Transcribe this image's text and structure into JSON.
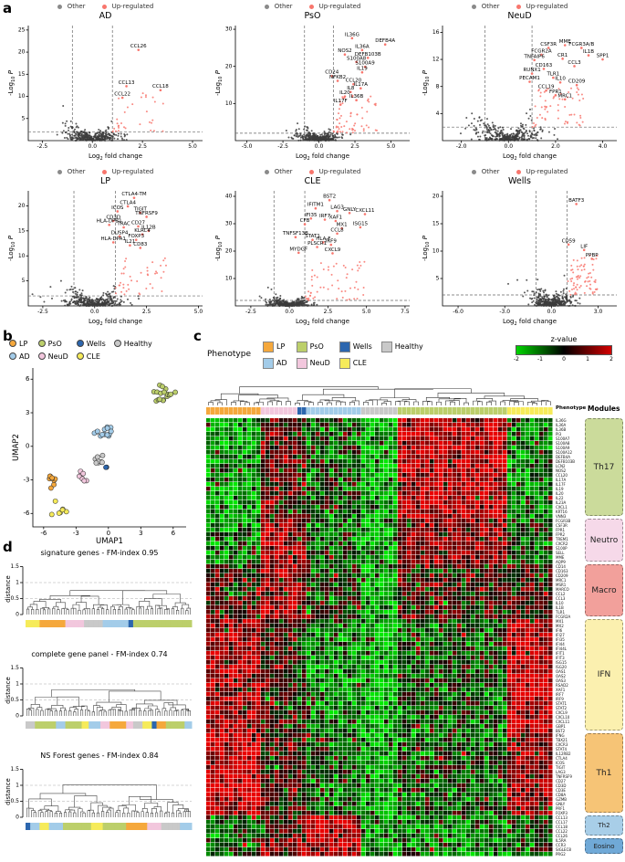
{
  "figure": {
    "panel_labels": {
      "a": "a",
      "b": "b",
      "c": "c",
      "d": "d"
    }
  },
  "colors": {
    "up": "#F8766D",
    "other_point": "#3c3c3c",
    "other_legend": "#8a8a8a",
    "heat_neg": "#00d400",
    "heat_pos": "#d40000",
    "phenotypes": {
      "LP": "#F5A83C",
      "PsO": "#BCCF6B",
      "Wells": "#2C66AE",
      "Healthy": "#C9C9C9",
      "AD": "#A3CCE9",
      "NeuD": "#F2C7DD",
      "CLE": "#F6EB5A"
    },
    "modules": {
      "Th17": "#CBDB9B",
      "Neutro": "#F6D9E9",
      "Macro": "#F2A09B",
      "IFN": "#FBF0AF",
      "Th1": "#F6C476",
      "Th2": "#A8CEE8",
      "Eosino": "#70A9D7"
    }
  },
  "volcano_legend": {
    "other": "Other",
    "up": "Up-regulated"
  },
  "axis_labels": {
    "volcano_x": {
      "pre": "Log",
      "sub": "2",
      "post": " fold change"
    },
    "volcano_y": {
      "pre": "-Log",
      "sub": "10",
      "post": " P"
    },
    "umap_x": "UMAP1",
    "umap_y": "UMAP2",
    "distance": "distance"
  },
  "phenotype_legend_order": [
    "LP",
    "AD",
    "PsO",
    "NeuD",
    "Wells",
    "CLE",
    "Healthy"
  ],
  "chart_data": {
    "volcanoes": [
      {
        "type": "scatter",
        "title": "AD",
        "xlim": [
          -3.2,
          5.5
        ],
        "xticks": [
          -2.5,
          0,
          2.5,
          5
        ],
        "ylim": [
          0,
          26
        ],
        "yticks": [
          5,
          10,
          15,
          20,
          25
        ],
        "threshold_x": [
          -1,
          1
        ],
        "threshold_y": 2,
        "n_background": 380,
        "n_extra_red": 20,
        "seed": 1,
        "genes": [
          [
            "CCL26",
            2.3,
            20.5
          ],
          [
            "CCL13",
            1.7,
            12.3
          ],
          [
            "CCL18",
            3.4,
            11.4
          ],
          [
            "CCL22",
            1.5,
            9.7
          ]
        ]
      },
      {
        "type": "scatter",
        "title": "PsO",
        "xlim": [
          -5.8,
          6.3
        ],
        "xticks": [
          -5,
          -2.5,
          0,
          2.5,
          5
        ],
        "ylim": [
          0,
          31
        ],
        "yticks": [
          10,
          20,
          30
        ],
        "threshold_x": [
          -1,
          1
        ],
        "threshold_y": 2,
        "n_background": 420,
        "n_extra_red": 45,
        "seed": 2,
        "genes": [
          [
            "IL36G",
            2.3,
            27.6
          ],
          [
            "DEFB4A",
            4.6,
            25.9
          ],
          [
            "IL36A",
            3.0,
            24.4
          ],
          [
            "NOS2",
            1.8,
            23.2
          ],
          [
            "DEFB103B",
            3.4,
            22.3
          ],
          [
            "S100A8",
            2.6,
            21.2
          ],
          [
            "S100A9",
            3.2,
            19.9
          ],
          [
            "IL19",
            3.0,
            18.4
          ],
          [
            "CD24",
            0.9,
            17.4
          ],
          [
            "NFKB2",
            1.3,
            16.1
          ],
          [
            "CCL20",
            2.4,
            15.2
          ],
          [
            "IL17A",
            2.9,
            14.1
          ],
          [
            "IL8",
            2.2,
            13.1
          ],
          [
            "IL20",
            1.8,
            11.9
          ],
          [
            "IL36B",
            2.6,
            10.9
          ],
          [
            "IL17F",
            1.5,
            9.7
          ]
        ]
      },
      {
        "type": "scatter",
        "title": "NeuD",
        "xlim": [
          -2.8,
          4.6
        ],
        "xticks": [
          -2,
          0,
          2,
          4
        ],
        "ylim": [
          0,
          17
        ],
        "yticks": [
          4,
          8,
          12,
          16
        ],
        "threshold_x": [
          -1,
          1
        ],
        "threshold_y": 2,
        "n_background": 380,
        "n_extra_red": 50,
        "seed": 3,
        "genes": [
          [
            "CSF3R",
            1.7,
            13.7
          ],
          [
            "MME",
            2.4,
            14.1
          ],
          [
            "FCGR3A/B",
            3.1,
            13.7
          ],
          [
            "FCGR2A",
            1.4,
            12.7
          ],
          [
            "IL1B",
            3.4,
            12.6
          ],
          [
            "CR1",
            2.3,
            12.1
          ],
          [
            "SPP1",
            4.0,
            12.0
          ],
          [
            "TNFAIP6",
            1.1,
            11.9
          ],
          [
            "CCL3",
            2.8,
            11.0
          ],
          [
            "CD163",
            1.5,
            10.6
          ],
          [
            "RUNX1",
            1.0,
            9.9
          ],
          [
            "TLR1",
            1.9,
            9.3
          ],
          [
            "PECAM1",
            0.9,
            8.7
          ],
          [
            "IL10",
            2.2,
            8.6
          ],
          [
            "CD209",
            2.9,
            8.2
          ],
          [
            "CCL19",
            1.6,
            7.4
          ],
          [
            "FPR1",
            2.0,
            6.7
          ],
          [
            "MRC1",
            2.4,
            6.1
          ]
        ]
      },
      {
        "type": "scatter",
        "title": "LP",
        "xlim": [
          -3.2,
          5.2
        ],
        "xticks": [
          -2.5,
          0,
          2.5,
          5
        ],
        "ylim": [
          0,
          23
        ],
        "yticks": [
          5,
          10,
          15,
          20
        ],
        "threshold_x": [
          -1,
          1
        ],
        "threshold_y": 2,
        "n_background": 400,
        "n_extra_red": 30,
        "seed": 4,
        "genes": [
          [
            "CTLA4-TM",
            1.9,
            21.6
          ],
          [
            "CTLA4",
            1.6,
            19.9
          ],
          [
            "ICOS",
            1.1,
            18.9
          ],
          [
            "TIGIT",
            2.2,
            18.6
          ],
          [
            "TNFRSF9",
            2.5,
            17.8
          ],
          [
            "CD3D",
            0.9,
            17.0
          ],
          [
            "HLA-DPB1",
            0.7,
            16.2
          ],
          [
            "TRAC",
            1.4,
            15.7
          ],
          [
            "CD27",
            2.1,
            15.9
          ],
          [
            "IL12B",
            2.6,
            15.0
          ],
          [
            "KLRC4",
            2.3,
            14.3
          ],
          [
            "DUSP4",
            1.2,
            13.9
          ],
          [
            "FOXP3",
            2.0,
            13.2
          ],
          [
            "HLA-DPA1",
            0.9,
            12.7
          ],
          [
            "IL21",
            1.7,
            12.1
          ],
          [
            "CD83",
            2.2,
            11.6
          ]
        ]
      },
      {
        "type": "scatter",
        "title": "CLE",
        "xlim": [
          -3.5,
          7.8
        ],
        "xticks": [
          -2.5,
          0,
          2.5,
          5,
          7.5
        ],
        "ylim": [
          0,
          42
        ],
        "yticks": [
          10,
          20,
          30,
          40
        ],
        "threshold_x": [
          -1,
          1
        ],
        "threshold_y": 2,
        "n_background": 400,
        "n_extra_red": 45,
        "seed": 5,
        "genes": [
          [
            "BST2",
            2.6,
            38.6
          ],
          [
            "IFITM1",
            1.7,
            35.6
          ],
          [
            "LAG3",
            3.1,
            34.6
          ],
          [
            "GNLY",
            3.9,
            33.9
          ],
          [
            "CXCL11",
            4.9,
            33.5
          ],
          [
            "IFI35",
            1.4,
            31.9
          ],
          [
            "IRF7",
            2.3,
            31.5
          ],
          [
            "XAF1",
            3.0,
            31.0
          ],
          [
            "CFB",
            1.0,
            29.8
          ],
          [
            "ISG15",
            4.6,
            28.7
          ],
          [
            "MX1",
            3.4,
            28.3
          ],
          [
            "CCL8",
            3.1,
            26.4
          ],
          [
            "TNFSF13B",
            0.4,
            25.1
          ],
          [
            "STAT1",
            1.5,
            24.1
          ],
          [
            "HLA-F",
            2.2,
            23.2
          ],
          [
            "IRF9",
            2.7,
            22.3
          ],
          [
            "PLSCR1",
            1.8,
            21.5
          ],
          [
            "MYDGF",
            0.6,
            19.4
          ],
          [
            "CXCL9",
            2.8,
            19.2
          ]
        ]
      },
      {
        "type": "scatter",
        "title": "Wells",
        "xlim": [
          -7.0,
          4.2
        ],
        "xticks": [
          -6,
          -3,
          0,
          3
        ],
        "ylim": [
          0,
          21
        ],
        "yticks": [
          5,
          10,
          15,
          20
        ],
        "threshold_x": [
          -1,
          1
        ],
        "threshold_y": 2,
        "n_background": 380,
        "n_extra_red": 60,
        "seed": 6,
        "genes": [
          [
            "BATF3",
            1.6,
            18.6
          ],
          [
            "CD59",
            1.1,
            11.2
          ],
          [
            "LIF",
            2.1,
            10.2
          ],
          [
            "PPBP",
            2.6,
            8.6
          ]
        ]
      }
    ],
    "umap": {
      "type": "scatter",
      "xlabel": "UMAP1",
      "ylabel": "UMAP2",
      "xlim": [
        -7,
        7.2
      ],
      "ylim": [
        -7.2,
        7
      ],
      "xticks": [
        -6,
        -3,
        0,
        3,
        6
      ],
      "yticks": [
        -6,
        -3,
        0,
        3,
        6
      ],
      "seed": 21,
      "clusters": [
        {
          "phenotype": "PsO",
          "cx": 5.0,
          "cy": 4.6,
          "n": 18,
          "spread": 0.85
        },
        {
          "phenotype": "AD",
          "cx": -0.3,
          "cy": 1.3,
          "n": 14,
          "spread": 0.8
        },
        {
          "phenotype": "Healthy",
          "cx": -0.9,
          "cy": -1.2,
          "n": 8,
          "spread": 0.55
        },
        {
          "phenotype": "Wells",
          "cx": -0.1,
          "cy": -1.9,
          "n": 2,
          "spread": 0.25
        },
        {
          "phenotype": "NeuD",
          "cx": -2.6,
          "cy": -2.6,
          "n": 8,
          "spread": 0.6
        },
        {
          "phenotype": "LP",
          "cx": -5.1,
          "cy": -3.1,
          "n": 9,
          "spread": 0.6
        },
        {
          "phenotype": "CLE",
          "cx": -4.6,
          "cy": -5.7,
          "n": 7,
          "spread": 0.55
        }
      ]
    },
    "heatmap": {
      "type": "heatmap",
      "legend_title": "Phenotype",
      "strip_label": "Phenotype",
      "modules_label": "Modules",
      "colorbar": {
        "title": "z-value",
        "ticks": [
          -2,
          -1,
          0,
          1,
          2
        ]
      },
      "seed": 7,
      "phenotype_columns": [
        {
          "phenotype": "LP",
          "n": 12
        },
        {
          "phenotype": "NeuD",
          "n": 8
        },
        {
          "phenotype": "Wells",
          "n": 2
        },
        {
          "phenotype": "AD",
          "n": 12
        },
        {
          "phenotype": "Healthy",
          "n": 8
        },
        {
          "phenotype": "PsO",
          "n": 24
        },
        {
          "phenotype": "CLE",
          "n": 10
        }
      ],
      "modules": [
        {
          "name": "Th17",
          "genes": [
            "IL36G",
            "IL36A",
            "IL36B",
            "PI3",
            "S100A7",
            "S100A8",
            "S100A9",
            "S100A12",
            "DEFB4A",
            "DEFB103B",
            "LCN2",
            "NOS2",
            "CCL20",
            "IL17A",
            "IL17F",
            "IL19",
            "IL20",
            "IL22",
            "IL23A",
            "CXCL1",
            "KRT16",
            "VNN3"
          ]
        },
        {
          "name": "Neutro",
          "genes": [
            "FCGR3B",
            "CSF3R",
            "FPR1",
            "FPR2",
            "TREM1",
            "CXCR2",
            "S100P",
            "SELL",
            "MME",
            "AQP9"
          ]
        },
        {
          "name": "Macro",
          "genes": [
            "CD14",
            "CD163",
            "CD209",
            "MRC1",
            "MSR1",
            "MARCO",
            "CCL2",
            "CCL3",
            "IL10",
            "IL1B",
            "TLR1",
            "FCGR2A"
          ]
        },
        {
          "name": "IFN",
          "genes": [
            "MX1",
            "MX2",
            "IFI6",
            "IFI27",
            "IFI35",
            "IFI44",
            "IFI44L",
            "IFIT1",
            "IFIT3",
            "ISG15",
            "ISG20",
            "OAS1",
            "OAS2",
            "OAS3",
            "RSAD2",
            "XAF1",
            "IRF7",
            "IRF9",
            "STAT1",
            "STAT2",
            "CXCL9",
            "CXCL10",
            "CXCL11",
            "GBP1",
            "BST2"
          ]
        },
        {
          "name": "Th1",
          "genes": [
            "IFNG",
            "TBX21",
            "CXCR3",
            "STAT4",
            "IL12RB2",
            "CTLA4",
            "ICOS",
            "TIGIT",
            "LAG3",
            "TNFRSF9",
            "CD27",
            "CD3D",
            "CD3E",
            "CD8A",
            "GZMB",
            "GNLY",
            "PRF1",
            "FOXP3"
          ]
        },
        {
          "name": "Th2",
          "genes": [
            "CCL13",
            "CCL17",
            "CCL18",
            "CCL22",
            "CCL26"
          ]
        },
        {
          "name": "Eosino",
          "genes": [
            "IL5RA",
            "CCR3",
            "SIGLEC8",
            "PRG2"
          ]
        }
      ],
      "block_means": {
        "Th17": {
          "LP": -1.2,
          "NeuD": 0.6,
          "Wells": 0.3,
          "AD": -0.4,
          "Healthy": -1.4,
          "PsO": 1.6,
          "CLE": -0.9
        },
        "Neutro": {
          "LP": -1.0,
          "NeuD": 1.4,
          "Wells": 0.8,
          "AD": -0.6,
          "Healthy": -1.2,
          "PsO": 1.0,
          "CLE": -0.4
        },
        "Macro": {
          "LP": 0.4,
          "NeuD": 1.4,
          "Wells": 0.9,
          "AD": -0.2,
          "Healthy": -1.4,
          "PsO": 0.3,
          "CLE": 0.4
        },
        "IFN": {
          "LP": 1.3,
          "NeuD": 0.3,
          "Wells": -0.2,
          "AD": -1.0,
          "Healthy": -1.4,
          "PsO": -0.4,
          "CLE": 1.7
        },
        "Th1": {
          "LP": 1.7,
          "NeuD": 0.4,
          "Wells": 0.3,
          "AD": -0.5,
          "Healthy": -1.4,
          "PsO": -0.5,
          "CLE": 1.1
        },
        "Th2": {
          "LP": -0.5,
          "NeuD": 0.4,
          "Wells": 0.8,
          "AD": 1.7,
          "Healthy": -1.0,
          "PsO": -1.0,
          "CLE": -0.4
        },
        "Eosino": {
          "LP": -0.4,
          "NeuD": 0.8,
          "Wells": 1.4,
          "AD": 1.4,
          "Healthy": -0.9,
          "PsO": -0.9,
          "CLE": -0.3
        }
      }
    },
    "dendrograms": [
      {
        "type": "dendrogram",
        "title": "signature genes - FM-index 0.95",
        "fm_index": 0.95,
        "ylabel": "distance",
        "yticks": [
          0,
          0.5,
          1,
          1.5
        ],
        "seed": 11,
        "strip": [
          [
            "CLE",
            6
          ],
          [
            "LP",
            11
          ],
          [
            "NeuD",
            8
          ],
          [
            "Healthy",
            8
          ],
          [
            "AD",
            11
          ],
          [
            "Wells",
            2
          ],
          [
            "PsO",
            25
          ]
        ]
      },
      {
        "type": "dendrogram",
        "title": "complete gene panel - FM-index 0.74",
        "fm_index": 0.74,
        "ylabel": "distance",
        "yticks": [
          0,
          0.5,
          1,
          1.5
        ],
        "seed": 12,
        "strip": [
          [
            "Healthy",
            4
          ],
          [
            "PsO",
            9
          ],
          [
            "AD",
            4
          ],
          [
            "PsO",
            7
          ],
          [
            "CLE",
            3
          ],
          [
            "AD",
            5
          ],
          [
            "NeuD",
            4
          ],
          [
            "LP",
            7
          ],
          [
            "NeuD",
            3
          ],
          [
            "Healthy",
            4
          ],
          [
            "CLE",
            4
          ],
          [
            "Wells",
            2
          ],
          [
            "LP",
            4
          ],
          [
            "PsO",
            8
          ],
          [
            "AD",
            3
          ]
        ]
      },
      {
        "type": "dendrogram",
        "title": "NS Forest genes - FM-index 0.84",
        "fm_index": 0.84,
        "ylabel": "distance",
        "yticks": [
          0,
          0.5,
          1,
          1.5
        ],
        "seed": 13,
        "strip": [
          [
            "Wells",
            2
          ],
          [
            "AD",
            4
          ],
          [
            "CLE",
            4
          ],
          [
            "AD",
            6
          ],
          [
            "PsO",
            12
          ],
          [
            "CLE",
            5
          ],
          [
            "PsO",
            10
          ],
          [
            "LP",
            9
          ],
          [
            "NeuD",
            6
          ],
          [
            "Healthy",
            8
          ],
          [
            "AD",
            5
          ]
        ]
      }
    ]
  }
}
